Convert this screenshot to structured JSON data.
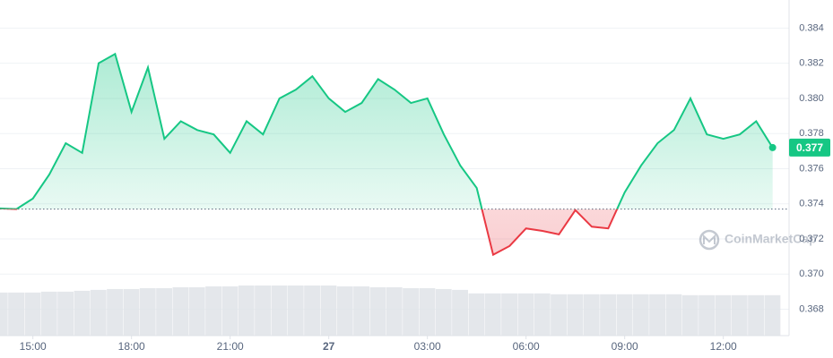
{
  "chart_data": {
    "type": "line",
    "x": [
      14,
      14.5,
      15,
      15.5,
      16,
      16.5,
      17,
      17.5,
      18,
      18.5,
      19,
      19.5,
      20,
      20.5,
      21,
      21.5,
      22,
      22.5,
      23,
      23.5,
      24,
      24.5,
      25,
      25.5,
      26,
      26.5,
      27,
      27.5,
      28,
      28.5,
      29,
      29.5,
      30,
      30.5,
      31,
      31.5,
      32,
      32.5,
      33,
      33.5,
      34,
      34.5,
      35,
      35.5,
      36,
      36.5,
      37,
      37.5
    ],
    "values": [
      0.37374,
      0.3737,
      0.3743,
      0.37567,
      0.37745,
      0.3769,
      0.382,
      0.38253,
      0.37923,
      0.38176,
      0.3777,
      0.3787,
      0.3782,
      0.37795,
      0.3769,
      0.3787,
      0.37795,
      0.38,
      0.3805,
      0.38126,
      0.38,
      0.37923,
      0.37974,
      0.3811,
      0.3805,
      0.37974,
      0.38,
      0.37795,
      0.37618,
      0.3749,
      0.3711,
      0.3716,
      0.3726,
      0.37246,
      0.37226,
      0.37364,
      0.3727,
      0.3726,
      0.37465,
      0.37618,
      0.37745,
      0.3782,
      0.38,
      0.37795,
      0.3777,
      0.37795,
      0.3787,
      0.3772
    ],
    "volume": [
      49,
      49,
      49,
      50,
      50,
      51,
      52,
      53,
      53,
      54,
      54,
      55,
      55,
      56,
      56,
      57,
      57,
      57,
      57,
      57,
      57,
      56,
      56,
      55,
      55,
      54,
      54,
      53,
      52,
      48,
      48,
      48,
      48,
      48,
      47,
      47,
      47,
      47,
      47,
      47,
      47,
      47,
      46,
      46,
      46,
      46,
      46,
      46
    ],
    "baseline": 0.3737,
    "up_color": "#16c784",
    "down_color": "#ea3943",
    "current_label": "0.377",
    "watermark": "CoinMarketCap",
    "xlim": [
      14,
      38
    ],
    "xticks": [
      {
        "value": 15,
        "label": "15:00"
      },
      {
        "value": 18,
        "label": "18:00"
      },
      {
        "value": 21,
        "label": "21:00"
      },
      {
        "value": 24,
        "label": "27"
      },
      {
        "value": 27,
        "label": "03:00"
      },
      {
        "value": 30,
        "label": "06:00"
      },
      {
        "value": 33,
        "label": "09:00"
      },
      {
        "value": 36,
        "label": "12:00"
      }
    ],
    "ylim": [
      0.3665,
      0.3856
    ],
    "yticks": [
      0.368,
      {
        "value": 0.37,
        "label": "0.370"
      },
      0.372,
      0.374,
      0.376,
      0.378,
      {
        "value": 0.38,
        "label": "0.380"
      },
      0.382,
      0.384
    ],
    "grid": true
  }
}
